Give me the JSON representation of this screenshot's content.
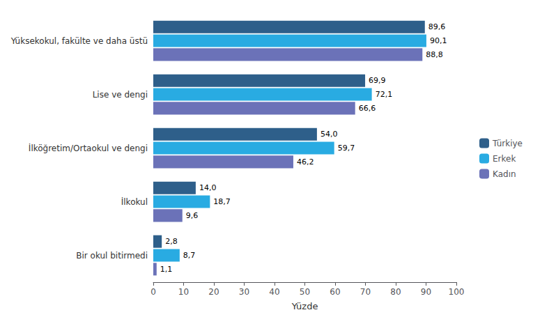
{
  "chart_data": {
    "type": "bar",
    "orientation": "horizontal",
    "categories": [
      "Bir okul bitirmedi",
      "İlkokul",
      "İlköğretim/Ortaokul ve dengi",
      "Lise ve dengi",
      "Yüksekokul, fakülte ve daha üstü"
    ],
    "series": [
      {
        "name": "Türkiye",
        "color": "#2e5f8a",
        "values": [
          2.8,
          14.0,
          54.0,
          69.9,
          89.6
        ],
        "value_labels": [
          "2,8",
          "14,0",
          "54,0",
          "69,9",
          "89,6"
        ]
      },
      {
        "name": "Erkek",
        "color": "#29abe2",
        "values": [
          8.7,
          18.7,
          59.7,
          72.1,
          90.1
        ],
        "value_labels": [
          "8,7",
          "18,7",
          "59,7",
          "72,1",
          "90,1"
        ]
      },
      {
        "name": "Kadın",
        "color": "#6b72b8",
        "values": [
          1.1,
          9.6,
          46.2,
          66.6,
          88.8
        ],
        "value_labels": [
          "1,1",
          "9,6",
          "46,2",
          "66,6",
          "88,8"
        ]
      }
    ],
    "xlabel": "Yüzde",
    "xlim": [
      0,
      100
    ],
    "xticks": [
      0,
      10,
      20,
      30,
      40,
      50,
      60,
      70,
      80,
      90,
      100
    ],
    "grid": false,
    "legend": "right",
    "data_labels": true
  }
}
